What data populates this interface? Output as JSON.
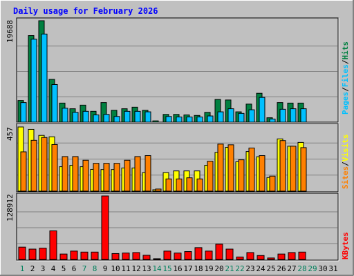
{
  "title": "Daily usage for February 2026",
  "colors": {
    "hits": "#008040",
    "files": "#00C0FF",
    "visits": "#FFFF00",
    "sites": "#FF8000",
    "kbytes": "#FF0000",
    "title_text": "#0000FF",
    "weekend_day": "#00805C"
  },
  "legend": {
    "top": {
      "pages": "Pages",
      "sep1": "/",
      "files": "Files",
      "sep2": "/",
      "hits": "Hits"
    },
    "middle": {
      "sites": "Sites",
      "sep": "/",
      "visits": "Visits"
    },
    "bottom": {
      "kbytes": "KBytes"
    }
  },
  "chart_data": [
    {
      "type": "bar",
      "panel": "hits-files-pages",
      "x": [
        1,
        2,
        3,
        4,
        5,
        6,
        7,
        8,
        9,
        10,
        11,
        12,
        13,
        14,
        15,
        16,
        17,
        18,
        19,
        20,
        21,
        22,
        23,
        24,
        25,
        26,
        27,
        28,
        29,
        30,
        31
      ],
      "ymax_label": "19688",
      "ylim": [
        0,
        19688
      ],
      "series": [
        {
          "name": "Hits",
          "values": [
            4200,
            16800,
            19688,
            8300,
            3700,
            2600,
            3300,
            2100,
            3800,
            2300,
            2600,
            2900,
            2300,
            250,
            1500,
            1500,
            1400,
            1300,
            1900,
            4400,
            4300,
            2000,
            3500,
            5600,
            850,
            3800,
            3700,
            3700,
            null,
            null,
            null
          ]
        },
        {
          "name": "Files",
          "values": [
            3800,
            16100,
            17100,
            7300,
            2700,
            1900,
            2100,
            1400,
            1500,
            1100,
            2100,
            2100,
            2000,
            0,
            1100,
            1000,
            1000,
            1000,
            1200,
            2000,
            2600,
            1700,
            2400,
            4800,
            600,
            2500,
            2600,
            2600,
            null,
            null,
            null
          ]
        },
        {
          "name": "Pages",
          "values": [
            500,
            800,
            900,
            600,
            400,
            300,
            300,
            250,
            300,
            250,
            300,
            300,
            300,
            50,
            200,
            200,
            200,
            200,
            250,
            300,
            300,
            250,
            300,
            400,
            100,
            300,
            300,
            300,
            null,
            null,
            null
          ]
        }
      ]
    },
    {
      "type": "bar",
      "panel": "visits-sites",
      "x": [
        1,
        2,
        3,
        4,
        5,
        6,
        7,
        8,
        9,
        10,
        11,
        12,
        13,
        14,
        15,
        16,
        17,
        18,
        19,
        20,
        21,
        22,
        23,
        24,
        25,
        26,
        27,
        28,
        29,
        30,
        31
      ],
      "ymax_label": "457",
      "ylim": [
        0,
        457
      ],
      "series": [
        {
          "name": "Visits",
          "values": [
            457,
            440,
            397,
            387,
            174,
            184,
            174,
            155,
            154,
            154,
            165,
            165,
            132,
            10,
            132,
            144,
            144,
            144,
            184,
            276,
            312,
            209,
            282,
            245,
            97,
            372,
            320,
            347,
            null,
            null,
            null
          ]
        },
        {
          "name": "Sites",
          "values": [
            280,
            362,
            382,
            332,
            246,
            246,
            220,
            198,
            198,
            198,
            220,
            246,
            253,
            15,
            87,
            87,
            95,
            87,
            213,
            335,
            330,
            223,
            307,
            253,
            107,
            360,
            320,
            310,
            null,
            null,
            null
          ]
        }
      ]
    },
    {
      "type": "bar",
      "panel": "kbytes",
      "x": [
        1,
        2,
        3,
        4,
        5,
        6,
        7,
        8,
        9,
        10,
        11,
        12,
        13,
        14,
        15,
        16,
        17,
        18,
        19,
        20,
        21,
        22,
        23,
        24,
        25,
        26,
        27,
        28,
        29,
        30,
        31
      ],
      "ymax_label": "128912",
      "ylim": [
        0,
        128912
      ],
      "series": [
        {
          "name": "KBytes",
          "values": [
            25000,
            21000,
            23000,
            58000,
            11000,
            17000,
            15000,
            15000,
            128912,
            12000,
            13000,
            14000,
            8500,
            1500,
            17000,
            13000,
            16000,
            24000,
            17000,
            31000,
            21000,
            5000,
            14000,
            8000,
            3000,
            11000,
            14000,
            15000,
            null,
            null,
            null
          ]
        }
      ]
    }
  ],
  "day_colors": [
    "#00805C",
    "#000000",
    "#000000",
    "#000000",
    "#000000",
    "#000000",
    "#00805C",
    "#00805C",
    "#000000",
    "#000000",
    "#000000",
    "#000000",
    "#000000",
    "#00805C",
    "#00805C",
    "#000000",
    "#000000",
    "#000000",
    "#000000",
    "#000000",
    "#00805C",
    "#00805C",
    "#000000",
    "#000000",
    "#000000",
    "#000000",
    "#000000",
    "#00805C",
    "#00805C",
    "#000000",
    "#000000"
  ]
}
